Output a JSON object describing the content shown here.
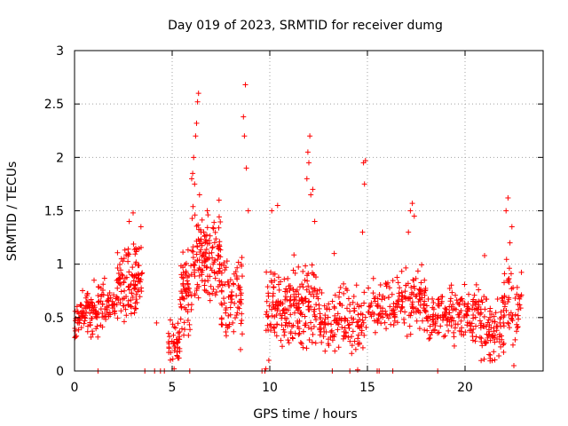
{
  "chart_data": {
    "type": "scatter",
    "title": "Day 019 of 2023, SRMTID for receiver dumg",
    "xlabel": "GPS time / hours",
    "ylabel": "SRMTID / TECUs",
    "xlim": [
      0,
      24
    ],
    "ylim": [
      0,
      3
    ],
    "xticks": [
      0,
      5,
      10,
      15,
      20
    ],
    "yticks": [
      0,
      0.5,
      1,
      1.5,
      2,
      2.5,
      3
    ],
    "ytick_labels": [
      "0",
      "0.5",
      "1",
      "1.5",
      "2",
      "2.5",
      "3"
    ],
    "grid": true,
    "marker": "+",
    "color": "#ff0000",
    "series": [
      {
        "name": "SRMTID",
        "clusters": [
          {
            "x_range": [
              0.0,
              1.2
            ],
            "y_range": [
              0.25,
              0.8
            ],
            "count": 90
          },
          {
            "x_range": [
              1.2,
              2.2
            ],
            "y_range": [
              0.35,
              0.9
            ],
            "count": 60
          },
          {
            "x_range": [
              2.2,
              3.5
            ],
            "y_range": [
              0.4,
              1.25
            ],
            "count": 110
          },
          {
            "x_range": [
              4.8,
              5.4
            ],
            "y_range": [
              0.05,
              0.5
            ],
            "count": 40
          },
          {
            "x_range": [
              5.4,
              6.0
            ],
            "y_range": [
              0.3,
              1.2
            ],
            "count": 60
          },
          {
            "x_range": [
              6.0,
              7.5
            ],
            "y_range": [
              0.6,
              1.55
            ],
            "count": 140
          },
          {
            "x_range": [
              7.5,
              8.6
            ],
            "y_range": [
              0.3,
              1.1
            ],
            "count": 80
          },
          {
            "x_range": [
              9.8,
              10.6
            ],
            "y_range": [
              0.2,
              1.0
            ],
            "count": 60
          },
          {
            "x_range": [
              10.6,
              12.5
            ],
            "y_range": [
              0.15,
              1.1
            ],
            "count": 150
          },
          {
            "x_range": [
              12.5,
              13.5
            ],
            "y_range": [
              0.15,
              0.8
            ],
            "count": 60
          },
          {
            "x_range": [
              13.5,
              14.8
            ],
            "y_range": [
              0.1,
              0.85
            ],
            "count": 80
          },
          {
            "x_range": [
              14.8,
              16.5
            ],
            "y_range": [
              0.3,
              0.9
            ],
            "count": 80
          },
          {
            "x_range": [
              16.5,
              18.0
            ],
            "y_range": [
              0.3,
              1.0
            ],
            "count": 100
          },
          {
            "x_range": [
              18.0,
              19.2
            ],
            "y_range": [
              0.25,
              0.75
            ],
            "count": 70
          },
          {
            "x_range": [
              19.2,
              20.8
            ],
            "y_range": [
              0.2,
              0.85
            ],
            "count": 100
          },
          {
            "x_range": [
              20.8,
              22.0
            ],
            "y_range": [
              0.05,
              0.75
            ],
            "count": 90
          },
          {
            "x_range": [
              22.0,
              22.9
            ],
            "y_range": [
              0.2,
              1.1
            ],
            "count": 50
          }
        ],
        "points": [
          [
            0.3,
            0.62
          ],
          [
            0.6,
            0.55
          ],
          [
            1.0,
            0.85
          ],
          [
            2.4,
            1.05
          ],
          [
            2.8,
            1.4
          ],
          [
            3.0,
            1.48
          ],
          [
            3.4,
            1.35
          ],
          [
            4.2,
            0.45
          ],
          [
            5.1,
            0.02
          ],
          [
            5.3,
            0.12
          ],
          [
            6.0,
            1.8
          ],
          [
            6.05,
            1.85
          ],
          [
            6.1,
            2.0
          ],
          [
            6.15,
            1.75
          ],
          [
            6.2,
            2.2
          ],
          [
            6.25,
            2.32
          ],
          [
            6.3,
            2.52
          ],
          [
            6.35,
            2.6
          ],
          [
            6.4,
            1.65
          ],
          [
            6.8,
            1.5
          ],
          [
            7.4,
            1.6
          ],
          [
            8.1,
            0.45
          ],
          [
            8.5,
            0.2
          ],
          [
            8.65,
            2.38
          ],
          [
            8.7,
            2.2
          ],
          [
            8.75,
            2.68
          ],
          [
            8.8,
            1.9
          ],
          [
            8.9,
            1.5
          ],
          [
            9.75,
            0.0
          ],
          [
            9.8,
            0.02
          ],
          [
            9.95,
            0.1
          ],
          [
            10.1,
            1.5
          ],
          [
            10.4,
            1.55
          ],
          [
            11.9,
            1.8
          ],
          [
            11.95,
            2.05
          ],
          [
            12.0,
            1.95
          ],
          [
            12.05,
            2.2
          ],
          [
            12.1,
            1.65
          ],
          [
            12.2,
            1.7
          ],
          [
            12.3,
            1.4
          ],
          [
            13.3,
            1.1
          ],
          [
            14.5,
            0.01
          ],
          [
            14.75,
            1.3
          ],
          [
            14.8,
            1.95
          ],
          [
            14.85,
            1.75
          ],
          [
            14.9,
            1.97
          ],
          [
            17.1,
            1.3
          ],
          [
            17.2,
            1.5
          ],
          [
            17.3,
            1.57
          ],
          [
            17.4,
            1.45
          ],
          [
            21.0,
            1.08
          ],
          [
            22.1,
            1.5
          ],
          [
            22.2,
            1.62
          ],
          [
            22.3,
            1.2
          ],
          [
            22.4,
            1.35
          ],
          [
            22.5,
            0.05
          ],
          [
            1.2,
            0.0
          ],
          [
            3.6,
            0.0
          ],
          [
            4.1,
            0.0
          ],
          [
            4.4,
            0.0
          ],
          [
            4.6,
            0.0
          ],
          [
            5.9,
            0.0
          ],
          [
            9.6,
            0.0
          ],
          [
            13.2,
            0.0
          ],
          [
            14.1,
            0.0
          ],
          [
            15.5,
            0.0
          ],
          [
            15.6,
            0.0
          ],
          [
            16.3,
            0.0
          ],
          [
            18.6,
            0.0
          ]
        ]
      }
    ]
  }
}
